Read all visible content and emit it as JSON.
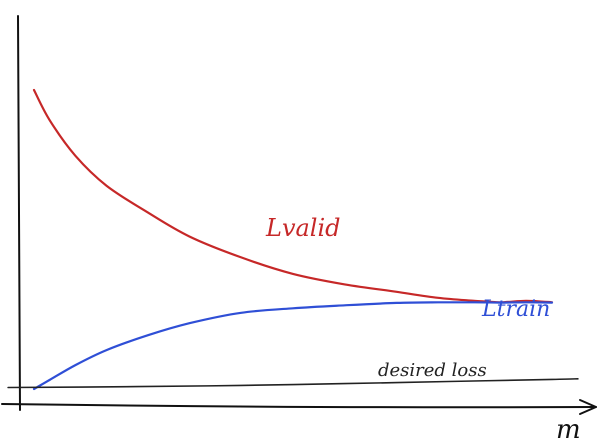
{
  "chart_data": {
    "type": "line",
    "title": "",
    "xlabel": "m",
    "ylabel": "",
    "grid": false,
    "legend": "none",
    "xlim": [
      0,
      100
    ],
    "ylim": [
      0,
      100
    ],
    "series": [
      {
        "name": "Lvalid",
        "color": "#c62828",
        "x": [
          0,
          3,
          8,
          14,
          22,
          30,
          40,
          50,
          60,
          70,
          78,
          85,
          90,
          95,
          100
        ],
        "y": [
          100,
          90,
          78,
          68,
          59,
          51,
          44,
          38.5,
          35,
          32.5,
          30.5,
          29.5,
          29,
          29.5,
          29
        ]
      },
      {
        "name": "Ltrain",
        "color": "#2f4fd6",
        "x": [
          0,
          3,
          8,
          14,
          22,
          30,
          40,
          50,
          60,
          70,
          78,
          85,
          90,
          95,
          100
        ],
        "y": [
          0,
          3,
          8,
          13,
          18,
          22,
          25.5,
          27,
          28,
          28.8,
          29,
          29,
          28.9,
          29,
          28.9
        ]
      },
      {
        "name": "desired loss",
        "color": "#222222",
        "x": [
          -5,
          20,
          40,
          60,
          80,
          100,
          105
        ],
        "y": [
          0.5,
          0.8,
          1.2,
          1.8,
          2.5,
          3.2,
          3.4
        ]
      }
    ]
  }
}
